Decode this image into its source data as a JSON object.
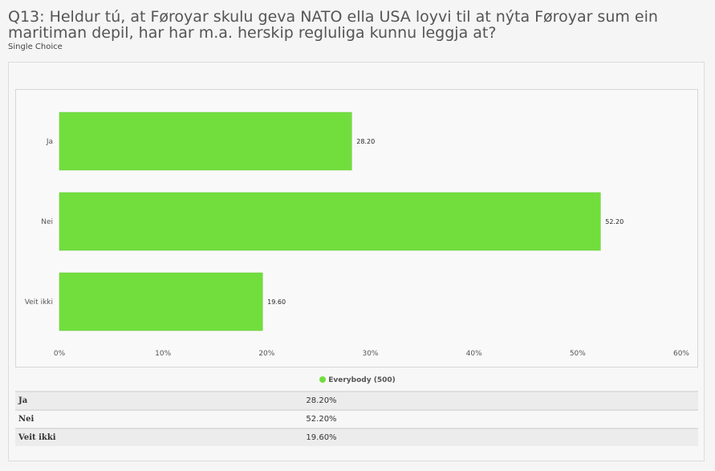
{
  "question": {
    "title": "Q13: Heldur tú, at Føroyar skulu geva NATO ella USA loyvi til at nýta Føroyar sum ein maritiman depil, har har m.a. herskip regluliga kunnu leggja at?",
    "type_label": "Single Choice"
  },
  "chart_data": {
    "type": "bar",
    "orientation": "horizontal",
    "categories": [
      "Ja",
      "Nei",
      "Veit ikki"
    ],
    "series": [
      {
        "name": "Everybody (500)",
        "values": [
          28.2,
          52.2,
          19.6
        ],
        "color": "#72de3e"
      }
    ],
    "data_labels": [
      "28.20",
      "52.20",
      "19.60"
    ],
    "xlim": [
      0,
      60
    ],
    "x_ticks": [
      "0%",
      "10%",
      "20%",
      "30%",
      "40%",
      "50%",
      "60%"
    ],
    "legend_position": "bottom-center",
    "grid": false
  },
  "legend": {
    "label": "Everybody (500)",
    "color": "#72de3e"
  },
  "table": {
    "rows": [
      {
        "label": "Ja",
        "value": "28.20%"
      },
      {
        "label": "Nei",
        "value": "52.20%"
      },
      {
        "label": "Veit ikki",
        "value": "19.60%"
      }
    ]
  }
}
